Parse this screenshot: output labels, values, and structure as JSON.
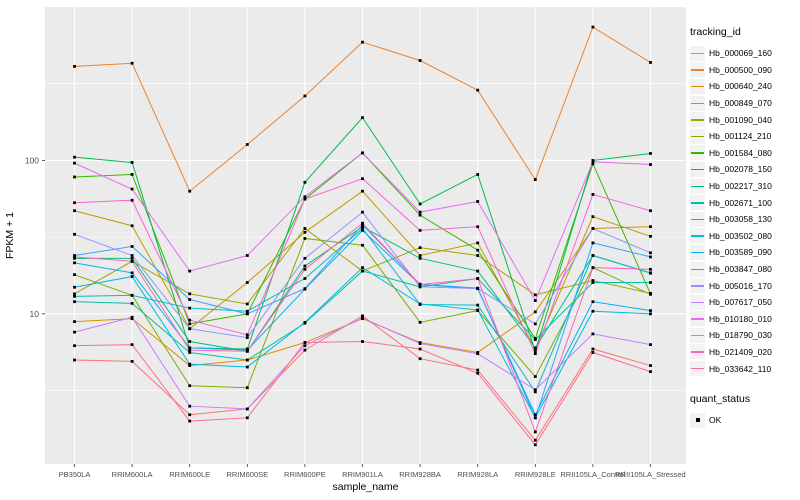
{
  "chart_data": {
    "type": "line",
    "title": "",
    "xlabel": "sample_name",
    "ylabel": "FPKM + 1",
    "y_scale": "log10",
    "ylim": [
      1.05,
      1000
    ],
    "y_ticks": [
      10,
      100
    ],
    "y_minor_ticks": [
      3.162,
      31.62,
      316.2
    ],
    "grid": "on",
    "legend_position": "right",
    "panel_bg": "#EBEBEB",
    "grid_color": "#FFFFFF",
    "tick_label_color": "#4D4D4D",
    "point_shape": "square",
    "point_color": "#000000",
    "categories": [
      "PB350LA",
      "RRIM600LA",
      "RRIM600LE",
      "RRIM600SE",
      "RRIM600PE",
      "RRIM901LA",
      "RRIM928BA",
      "RRIM928LA",
      "RRIM928LE",
      "RRII105LA_Control",
      "RRII105LA_Stressed"
    ],
    "series": [
      {
        "name": "Hb_000069_160",
        "color": "#F8766D",
        "values": [
          5.0,
          4.9,
          2.2,
          2.4,
          5.8,
          9.7,
          5.1,
          4.3,
          1.5,
          5.9,
          4.6
        ]
      },
      {
        "name": "Hb_000500_090",
        "color": "#EA8331",
        "values": [
          410,
          430,
          63,
          127,
          263,
          590,
          448,
          287,
          75,
          740,
          435
        ]
      },
      {
        "name": "Hb_000640_240",
        "color": "#D89000",
        "values": [
          8.9,
          9.3,
          4.6,
          5.0,
          6.5,
          9.3,
          6.5,
          5.6,
          10.3,
          36,
          37
        ]
      },
      {
        "name": "Hb_000849_070",
        "color": "#C09B00",
        "values": [
          47,
          37.5,
          8.0,
          16,
          34,
          63,
          24,
          29,
          5.9,
          43,
          32
        ]
      },
      {
        "name": "Hb_001090_040",
        "color": "#A3A500",
        "values": [
          13.5,
          22,
          13.5,
          11.6,
          36,
          19,
          27,
          24,
          13.3,
          16.5,
          13.6
        ]
      },
      {
        "name": "Hb_001124_210",
        "color": "#7CAE00",
        "values": [
          18,
          13.2,
          3.4,
          3.3,
          31,
          28,
          8.8,
          10.5,
          3.9,
          20,
          13.4
        ]
      },
      {
        "name": "Hb_001584_080",
        "color": "#39B600",
        "values": [
          78,
          81,
          8.6,
          10.0,
          56,
          112,
          44,
          26,
          6.9,
          95,
          13.5
        ]
      },
      {
        "name": "Hb_002078_150",
        "color": "#00BB4E",
        "values": [
          105,
          97,
          6.0,
          5.9,
          72,
          190,
          52,
          81,
          5.7,
          100,
          111
        ]
      },
      {
        "name": "Hb_002217_310",
        "color": "#00BF7D",
        "values": [
          23,
          23,
          6.6,
          5.7,
          20.5,
          37,
          23,
          19,
          6.0,
          24,
          18.5
        ]
      },
      {
        "name": "Hb_002671_100",
        "color": "#00C1A3",
        "values": [
          12,
          11.7,
          5.6,
          5.0,
          8.7,
          19,
          15,
          17,
          6.8,
          16,
          16
        ]
      },
      {
        "name": "Hb_003058_130",
        "color": "#00BFC4",
        "values": [
          13,
          13.2,
          10.9,
          10.4,
          17,
          36,
          11.5,
          11.4,
          3.1,
          24,
          18.4
        ]
      },
      {
        "name": "Hb_003502_080",
        "color": "#00BAE0",
        "values": [
          14.9,
          17.5,
          4.7,
          4.5,
          8.8,
          20,
          11.6,
          10.6,
          2.1,
          10.4,
          10
        ]
      },
      {
        "name": "Hb_003589_090",
        "color": "#00B0F6",
        "values": [
          21.5,
          18.5,
          6.0,
          5.8,
          14.5,
          35,
          15.5,
          14.6,
          2.2,
          12,
          10.5
        ]
      },
      {
        "name": "Hb_003847_080",
        "color": "#35A2FF",
        "values": [
          24,
          27.5,
          12.4,
          10.0,
          14.6,
          38,
          15.6,
          14.7,
          2.1,
          29,
          23.5
        ]
      },
      {
        "name": "Hb_005016_170",
        "color": "#9590FF",
        "values": [
          33,
          24,
          8.0,
          7.0,
          23,
          46,
          15,
          14.6,
          8.6,
          36,
          25
        ]
      },
      {
        "name": "Hb_007617_050",
        "color": "#C77CFF",
        "values": [
          7.6,
          9.5,
          2.5,
          2.4,
          6.2,
          9.4,
          6.4,
          5.5,
          3.2,
          7.4,
          6.3
        ]
      },
      {
        "name": "Hb_010180_010",
        "color": "#E76BF3",
        "values": [
          96,
          65,
          19,
          24,
          58,
          112,
          46,
          54,
          12.2,
          98,
          94
        ]
      },
      {
        "name": "Hb_018790_030",
        "color": "#FA62DB",
        "values": [
          53,
          55,
          9.1,
          7.3,
          56,
          76,
          35,
          37,
          5.5,
          60,
          47
        ]
      },
      {
        "name": "Hb_021409_020",
        "color": "#FF62BC",
        "values": [
          23.5,
          22,
          5.8,
          5.7,
          19.5,
          39,
          15.5,
          17,
          1.7,
          20,
          19.5
        ]
      },
      {
        "name": "Hb_033642_110",
        "color": "#FF6A98",
        "values": [
          6.2,
          6.3,
          2.0,
          2.1,
          6.5,
          6.6,
          5.9,
          4.1,
          1.4,
          5.6,
          4.2
        ]
      }
    ],
    "legend": {
      "tracking_title": "tracking_id",
      "quant_title": "quant_status",
      "quant_value": "OK"
    }
  }
}
